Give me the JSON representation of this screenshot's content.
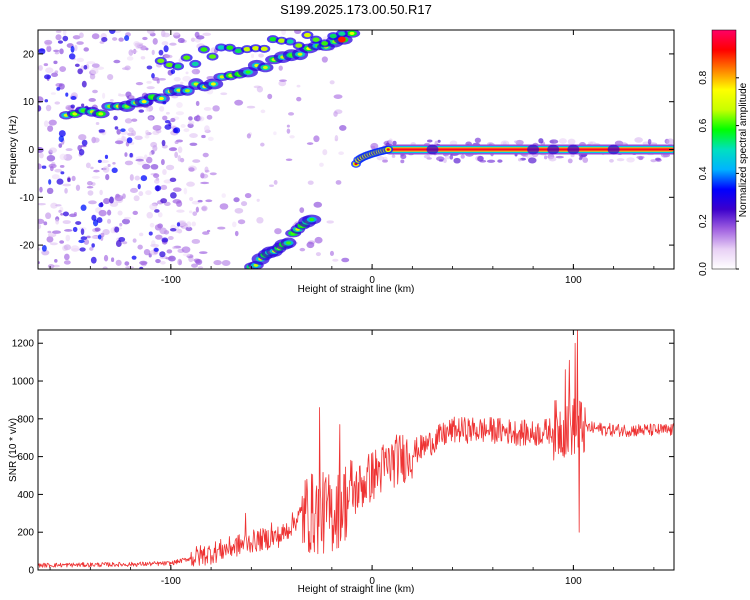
{
  "title": "S199.2025.173.00.50.R17",
  "chart_data": [
    {
      "type": "heatmap",
      "name": "spectrogram",
      "xlabel": "Height of straight line (km)",
      "ylabel": "Frequency (Hz)",
      "xlim": [
        -166,
        150
      ],
      "ylim": [
        -25,
        25
      ],
      "xticks": [
        -100,
        0,
        100
      ],
      "yticks": [
        -20,
        -10,
        0,
        10,
        20
      ],
      "colorbar": {
        "label": "Normalized spectral amplitude",
        "range": [
          0.0,
          1.0
        ],
        "ticks": [
          0.0,
          0.2,
          0.4,
          0.6,
          0.8
        ],
        "tick_labels": [
          "0.0",
          "0.2",
          "0.4",
          "0.6",
          "0.8"
        ],
        "colormap": [
          "#ffffff",
          "#e8d0f5",
          "#a060e0",
          "#3c00cc",
          "#0000ff",
          "#00b4ff",
          "#00e0c0",
          "#00ff00",
          "#c8ff00",
          "#ffff00",
          "#ff8000",
          "#ff0000",
          "#ff0066"
        ]
      },
      "features": [
        {
          "label": "carrier line",
          "x": [
            -8,
            150
          ],
          "y": [
            -1,
            0
          ],
          "level": 0.95
        },
        {
          "label": "upper branch",
          "x": [
            -152,
            -10
          ],
          "y": [
            7,
            24
          ],
          "level": 0.6
        },
        {
          "label": "lower branch",
          "x": [
            -60,
            -30
          ],
          "y": [
            -25,
            -15
          ],
          "level": 0.5
        }
      ]
    },
    {
      "type": "line",
      "name": "snr",
      "xlabel": "Height of straight line (km)",
      "ylabel": "SNR (10 * v/v)",
      "xlim": [
        -166,
        150
      ],
      "ylim": [
        0,
        1270
      ],
      "xticks": [
        -100,
        0,
        100
      ],
      "yticks": [
        0,
        200,
        400,
        600,
        800,
        1000,
        1200
      ],
      "color": "#ee3333",
      "envelope": {
        "x": [
          -166,
          -120,
          -100,
          -80,
          -60,
          -45,
          -35,
          -20,
          -10,
          0,
          10,
          20,
          30,
          40,
          60,
          80,
          100,
          120,
          150
        ],
        "y": [
          25,
          30,
          35,
          90,
          150,
          180,
          300,
          300,
          400,
          500,
          570,
          620,
          680,
          740,
          740,
          720,
          760,
          740,
          740
        ]
      },
      "spikes": [
        {
          "x": -63,
          "y": 300
        },
        {
          "x": -50,
          "y": 250
        },
        {
          "x": -26,
          "y": 860
        },
        {
          "x": -16,
          "y": 770
        },
        {
          "x": 96,
          "y": 1060
        },
        {
          "x": 98,
          "y": 1110
        },
        {
          "x": 101,
          "y": 1200
        },
        {
          "x": 102,
          "y": 1270
        },
        {
          "x": 103,
          "y": 200
        }
      ]
    }
  ]
}
